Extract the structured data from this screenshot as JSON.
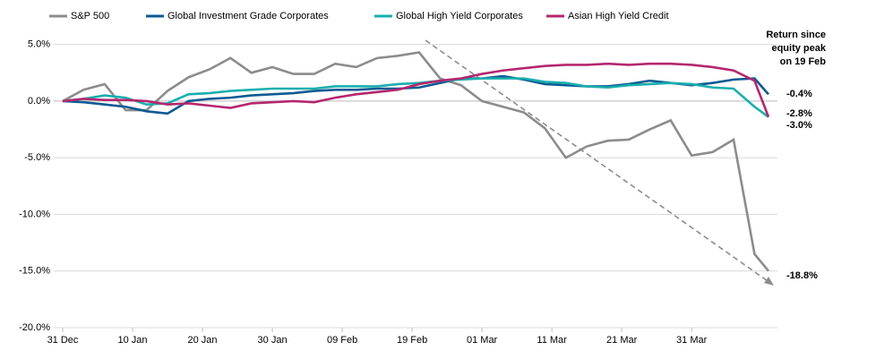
{
  "chart_data": {
    "type": "line",
    "annotation": [
      "Return since",
      "equity peak",
      "on 19 Feb"
    ],
    "x": [
      0,
      3,
      6,
      9,
      12,
      15,
      18,
      21,
      24,
      27,
      30,
      33,
      36,
      39,
      42,
      45,
      48,
      51,
      54,
      57,
      60,
      63,
      66,
      69,
      72,
      75,
      78,
      81,
      84,
      87,
      90,
      93,
      96,
      99,
      101
    ],
    "xlim": [
      0,
      101
    ],
    "xticks": [
      {
        "value": 0,
        "label": "31 Dec"
      },
      {
        "value": 10,
        "label": "10 Jan"
      },
      {
        "value": 20,
        "label": "20 Jan"
      },
      {
        "value": 30,
        "label": "30 Jan"
      },
      {
        "value": 40,
        "label": "09 Feb"
      },
      {
        "value": 50,
        "label": "19 Feb"
      },
      {
        "value": 60,
        "label": "01 Mar"
      },
      {
        "value": 70,
        "label": "11 Mar"
      },
      {
        "value": 80,
        "label": "21 Mar"
      },
      {
        "value": 90,
        "label": "31 Mar"
      }
    ],
    "ylim": [
      -20,
      6
    ],
    "yticks": [
      {
        "value": 5,
        "label": "5.0%"
      },
      {
        "value": 0,
        "label": "0.0%"
      },
      {
        "value": -5,
        "label": "-5.0%"
      },
      {
        "value": -10,
        "label": "-10.0%"
      },
      {
        "value": -15,
        "label": "-15.0%"
      },
      {
        "value": -20,
        "label": "-20.0%"
      }
    ],
    "grid": true,
    "legend": "top",
    "series": [
      {
        "name": "S&P 500",
        "color": "#8c8c8c",
        "end_label": "-18.8%",
        "values": [
          0,
          1.0,
          1.5,
          -0.8,
          -0.8,
          0.9,
          2.1,
          2.8,
          3.8,
          2.5,
          3.0,
          2.4,
          2.4,
          3.3,
          3.0,
          3.8,
          4.0,
          4.3,
          2.0,
          1.4,
          0.0,
          -0.5,
          -1.0,
          -2.4,
          -5.0,
          -4.0,
          -3.5,
          -3.4,
          -2.5,
          -1.7,
          -4.8,
          -4.5,
          -3.4,
          -13.5,
          -15.0
        ]
      },
      {
        "name": "Global Investment Grade Corporates",
        "color": "#0c5a93",
        "end_label": "-0.4%",
        "values": [
          0,
          -0.1,
          -0.3,
          -0.5,
          -0.9,
          -1.1,
          0.0,
          0.2,
          0.3,
          0.5,
          0.6,
          0.7,
          0.9,
          1.0,
          1.0,
          1.1,
          1.1,
          1.2,
          1.6,
          2.0,
          2.0,
          2.2,
          1.9,
          1.5,
          1.4,
          1.3,
          1.3,
          1.5,
          1.8,
          1.6,
          1.4,
          1.6,
          1.9,
          2.0,
          0.6
        ]
      },
      {
        "name": "Global High Yield Corporates",
        "color": "#1aaeae",
        "end_label": "-3.0%",
        "values": [
          0,
          0.2,
          0.5,
          0.3,
          -0.3,
          -0.2,
          0.6,
          0.7,
          0.9,
          1.0,
          1.1,
          1.1,
          1.1,
          1.3,
          1.3,
          1.3,
          1.5,
          1.6,
          1.8,
          1.9,
          2.0,
          2.0,
          2.0,
          1.7,
          1.6,
          1.3,
          1.2,
          1.4,
          1.5,
          1.6,
          1.5,
          1.2,
          1.1,
          -0.5,
          -1.4
        ]
      },
      {
        "name": "Asian High Yield Credit",
        "color": "#b5276e",
        "end_label": "-2.8%",
        "values": [
          0,
          0.2,
          0.1,
          0.1,
          0.0,
          -0.3,
          -0.2,
          -0.4,
          -0.6,
          -0.2,
          -0.1,
          0.0,
          -0.1,
          0.3,
          0.6,
          0.8,
          1.0,
          1.5,
          1.8,
          2.0,
          2.4,
          2.7,
          2.9,
          3.1,
          3.2,
          3.2,
          3.3,
          3.2,
          3.3,
          3.3,
          3.2,
          3.0,
          2.7,
          1.8,
          -1.4
        ]
      }
    ]
  }
}
